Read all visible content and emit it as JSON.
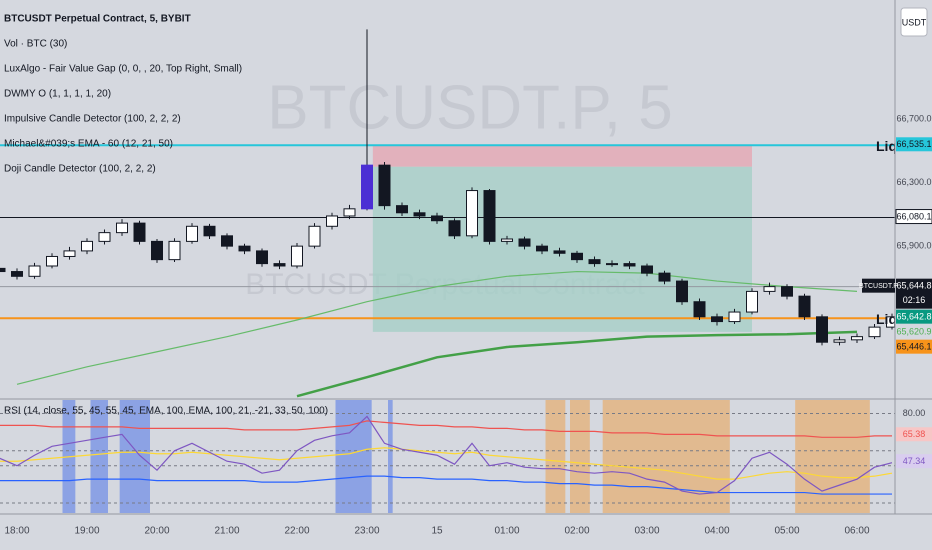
{
  "chart_data": [
    {
      "type": "candlestick",
      "title": "BTCUSDT Perpetual Contract, 5, BYBIT",
      "indicators": [
        "Vol · BTC (30)",
        "LuxAlgo - Fair Value Gap (0, 0, , 20, Top Right, Small)",
        "DWMY O (1, 1, 1, 1, 20)",
        "Impulsive Candle Detector (100, 2, 2, 2)",
        "Michael&#039;s EMA - 60 (12, 21, 50)",
        "Doji Candle Detector (100, 2, 2, 2)"
      ],
      "watermark": "BTCUSDT.P, 5",
      "watermark_sub": "BTCUSDT Perpetual Contract",
      "currency": "USDT",
      "x": [
        "17:45",
        "18:00",
        "18:15",
        "18:30",
        "18:45",
        "19:00",
        "19:15",
        "19:30",
        "19:45",
        "20:00",
        "20:15",
        "20:30",
        "20:45",
        "21:00",
        "21:15",
        "21:30",
        "21:45",
        "22:00",
        "22:15",
        "22:30",
        "22:45",
        "23:00",
        "23:15",
        "23:30",
        "23:45",
        "00:00",
        "00:15",
        "00:30",
        "00:45",
        "01:00",
        "01:15",
        "01:30",
        "01:45",
        "02:00",
        "02:15",
        "02:30",
        "02:45",
        "03:00",
        "03:15",
        "03:30",
        "03:45",
        "04:00",
        "04:15",
        "04:30",
        "04:45",
        "05:00",
        "05:15",
        "05:30",
        "05:45",
        "06:00",
        "06:15",
        "06:30"
      ],
      "open": [
        65760,
        65740,
        65710,
        65775,
        65835,
        65870,
        65930,
        65985,
        66045,
        65930,
        65815,
        65930,
        66025,
        65965,
        65900,
        65870,
        65790,
        65775,
        65900,
        66025,
        66090,
        66135,
        66410,
        66155,
        66110,
        66090,
        66060,
        65965,
        66250,
        65930,
        65945,
        65900,
        65870,
        65855,
        65815,
        65790,
        65790,
        65775,
        65730,
        65680,
        65550,
        65455,
        65425,
        65485,
        65615,
        65645,
        65585,
        65455,
        65295,
        65310,
        65330,
        65390
      ],
      "high": [
        65785,
        65760,
        65795,
        65855,
        65895,
        65950,
        66005,
        66070,
        66060,
        65945,
        65950,
        66045,
        66040,
        65980,
        65915,
        65885,
        65810,
        65920,
        66045,
        66110,
        66160,
        67265,
        66430,
        66175,
        66130,
        66110,
        66075,
        66270,
        66260,
        65965,
        65960,
        65915,
        65890,
        65870,
        65835,
        65810,
        65805,
        65790,
        65745,
        65695,
        65570,
        65475,
        65505,
        65635,
        65670,
        65660,
        65600,
        65470,
        65330,
        65350,
        65410,
        65475
      ],
      "low": [
        65720,
        65690,
        65695,
        65760,
        65815,
        65850,
        65910,
        65965,
        65910,
        65795,
        65800,
        65915,
        65945,
        65880,
        65850,
        65770,
        65755,
        65760,
        65885,
        66005,
        66070,
        66125,
        66130,
        66090,
        66070,
        66040,
        65945,
        65950,
        65910,
        65910,
        65880,
        65850,
        65835,
        65795,
        65770,
        65770,
        65755,
        65710,
        65660,
        65530,
        65435,
        65400,
        65410,
        65470,
        65595,
        65565,
        65435,
        65275,
        65275,
        65290,
        65315,
        65375
      ],
      "close": [
        65740,
        65710,
        65775,
        65835,
        65870,
        65930,
        65985,
        66045,
        65930,
        65815,
        65930,
        66025,
        65965,
        65900,
        65870,
        65790,
        65775,
        65900,
        66025,
        66090,
        66135,
        66410,
        66155,
        66110,
        66090,
        66060,
        65965,
        66250,
        65930,
        65945,
        65900,
        65870,
        65855,
        65815,
        65790,
        65790,
        65775,
        65730,
        65680,
        65550,
        65455,
        65425,
        65485,
        65615,
        65645,
        65585,
        65455,
        65295,
        65310,
        65330,
        65390,
        65455
      ],
      "up_color": "#ffffff",
      "down_color": "#131722",
      "impulsive": [
        "23:00"
      ],
      "impulsive_color": "#4b2fd4",
      "ylim": [
        64950,
        67450
      ],
      "yticks": [
        {
          "value": 66700,
          "label": "66,700.0"
        },
        {
          "value": 66300,
          "label": "66,300.0"
        },
        {
          "value": 65900,
          "label": "65,900.0"
        }
      ],
      "xticks": [
        "18:00",
        "19:00",
        "20:00",
        "21:00",
        "22:00",
        "23:00",
        {
          "value": "00:00",
          "label": "15"
        },
        "01:00",
        "02:00",
        "03:00",
        "04:00",
        "05:00",
        "06:00"
      ],
      "zones": [
        {
          "x": [
            "23:05",
            "04:30"
          ],
          "y": [
            66400,
            66535
          ],
          "color": "#e6a4b0"
        },
        {
          "x": [
            "23:05",
            "04:30"
          ],
          "y": [
            65360,
            66400
          ],
          "color": "#a3cfc5"
        }
      ],
      "overlays": [
        {
          "color": "#66bb6a",
          "width": 1.2,
          "x": [
            "18:00",
            "19:00",
            "20:00",
            "21:00",
            "22:00",
            "23:00",
            "00:00",
            "01:00",
            "02:00",
            "03:00",
            "04:00",
            "05:00",
            "06:00"
          ],
          "values": [
            65030,
            65140,
            65235,
            65330,
            65435,
            65550,
            65645,
            65710,
            65740,
            65730,
            65680,
            65645,
            65615
          ]
        },
        {
          "color": "#43a047",
          "width": 2.5,
          "x": [
            "22:00",
            "23:00",
            "00:00",
            "01:00",
            "02:00",
            "03:00",
            "04:00",
            "05:00",
            "06:00"
          ],
          "values": [
            64955,
            65075,
            65200,
            65265,
            65295,
            65330,
            65340,
            65345,
            65360
          ]
        }
      ],
      "price_labels": [
        {
          "value": 66535.1,
          "label": "66,535.1",
          "bg": "#26c6da",
          "fg": "#131722",
          "line_color": "#26c6da",
          "line_width": 2
        },
        {
          "value": 66080.1,
          "label": "66,080.1",
          "bg": "#ffffff",
          "fg": "#131722",
          "line_color": "#131722",
          "line_width": 1
        },
        {
          "value": 65644.8,
          "label": "65,644.8",
          "name": "BTCUSDT.P",
          "timer": "02:16",
          "bg": "#131722",
          "fg": "#ffffff",
          "line_color": "#9598a1",
          "line_width": 1
        },
        {
          "value": 65642.8,
          "label": "65,642.8",
          "bg": "#089981",
          "fg": "#ffffff"
        },
        {
          "value": 65620.9,
          "label": "65,620.9",
          "bg": "#d5d8df",
          "fg": "#4caf50"
        },
        {
          "value": 65446.1,
          "label": "65,446.1",
          "bg": "#f7931a",
          "fg": "#131722",
          "line_color": "#f7931a",
          "line_width": 2
        }
      ],
      "annotations": [
        {
          "text": "Liq",
          "value": 66535.1
        },
        {
          "text": "Liq",
          "value": 65446.1
        }
      ]
    },
    {
      "type": "line",
      "title": "RSI (14, close, 55, 45, 55, 45, EMA, 100, EMA, 100, 21, -21, 33, 50, 100)",
      "x": [
        "17:45",
        "18:00",
        "18:15",
        "18:30",
        "18:45",
        "19:00",
        "19:15",
        "19:30",
        "19:45",
        "20:00",
        "20:15",
        "20:30",
        "20:45",
        "21:00",
        "21:15",
        "21:30",
        "21:45",
        "22:00",
        "22:15",
        "22:30",
        "22:45",
        "23:00",
        "23:15",
        "23:30",
        "23:45",
        "00:00",
        "00:15",
        "00:30",
        "00:45",
        "01:00",
        "01:15",
        "01:30",
        "01:45",
        "02:00",
        "02:15",
        "02:30",
        "02:45",
        "03:00",
        "03:15",
        "03:30",
        "03:45",
        "04:00",
        "04:15",
        "04:30",
        "04:45",
        "05:00",
        "05:15",
        "05:30",
        "05:45",
        "06:00",
        "06:15",
        "06:30"
      ],
      "series": [
        {
          "color": "#ef5350",
          "values": [
            72,
            72,
            72,
            71,
            71,
            71,
            71,
            71,
            70,
            70,
            70,
            70,
            70,
            70,
            69,
            69,
            69,
            69,
            70,
            71,
            72,
            75,
            74,
            73,
            72,
            72,
            71,
            71,
            70,
            70,
            69,
            69,
            68,
            68,
            68,
            67,
            67,
            67,
            66,
            66,
            66,
            65,
            65,
            65,
            65,
            65,
            65,
            64,
            64,
            64,
            65,
            65
          ]
        },
        {
          "color": "#2962ff",
          "values": [
            35,
            35,
            35,
            35,
            35,
            36,
            36,
            36,
            36,
            35,
            35,
            35,
            35,
            35,
            35,
            34,
            34,
            34,
            35,
            36,
            37,
            38,
            38,
            37,
            37,
            36,
            36,
            36,
            35,
            35,
            34,
            34,
            33,
            33,
            32,
            32,
            31,
            31,
            30,
            29,
            28,
            27,
            27,
            27,
            27,
            27,
            27,
            26,
            26,
            26,
            26,
            26
          ]
        },
        {
          "color": "#fdd835",
          "values": [
            48,
            48,
            49,
            50,
            51,
            52,
            53,
            54,
            54,
            53,
            53,
            54,
            53,
            52,
            51,
            50,
            49,
            50,
            51,
            52,
            53,
            56,
            57,
            56,
            55,
            54,
            53,
            54,
            52,
            51,
            50,
            49,
            48,
            47,
            46,
            45,
            44,
            43,
            42,
            40,
            38,
            36,
            36,
            38,
            40,
            41,
            40,
            38,
            37,
            37,
            38,
            40
          ]
        },
        {
          "color": "#7e57c2",
          "values": [
            50,
            45,
            52,
            58,
            60,
            62,
            64,
            66,
            52,
            42,
            55,
            60,
            54,
            48,
            46,
            40,
            42,
            55,
            62,
            65,
            67,
            78,
            60,
            56,
            54,
            52,
            46,
            60,
            45,
            47,
            44,
            43,
            43,
            41,
            40,
            41,
            40,
            36,
            34,
            28,
            26,
            27,
            35,
            50,
            54,
            46,
            36,
            28,
            32,
            36,
            44,
            47
          ]
        }
      ],
      "ylim": [
        14,
        89
      ],
      "yticks": [
        {
          "value": 80,
          "label": "80.00"
        }
      ],
      "levels": [
        80,
        55,
        45,
        20
      ],
      "highlights": [
        {
          "x": [
            "18:39",
            "18:50"
          ],
          "color": "#5c7ee8"
        },
        {
          "x": [
            "19:03",
            "19:18"
          ],
          "color": "#5c7ee8"
        },
        {
          "x": [
            "19:28",
            "19:54"
          ],
          "color": "#5c7ee8"
        },
        {
          "x": [
            "22:33",
            "23:04"
          ],
          "color": "#5c7ee8"
        },
        {
          "x": [
            "23:18",
            "23:22"
          ],
          "color": "#5c7ee8"
        },
        {
          "x": [
            "01:33",
            "01:50"
          ],
          "color": "#eaa75c"
        },
        {
          "x": [
            "01:54",
            "02:11"
          ],
          "color": "#eaa75c"
        },
        {
          "x": [
            "02:22",
            "04:11"
          ],
          "color": "#eaa75c"
        },
        {
          "x": [
            "05:07",
            "06:11"
          ],
          "color": "#eaa75c"
        }
      ],
      "last_labels": [
        {
          "value": 65.38,
          "label": "65.38",
          "bg": "#f7c6c6",
          "fg": "#ef5350"
        },
        {
          "value": 47.34,
          "label": "47.34",
          "bg": "#d9cdef",
          "fg": "#7e57c2"
        }
      ]
    }
  ]
}
